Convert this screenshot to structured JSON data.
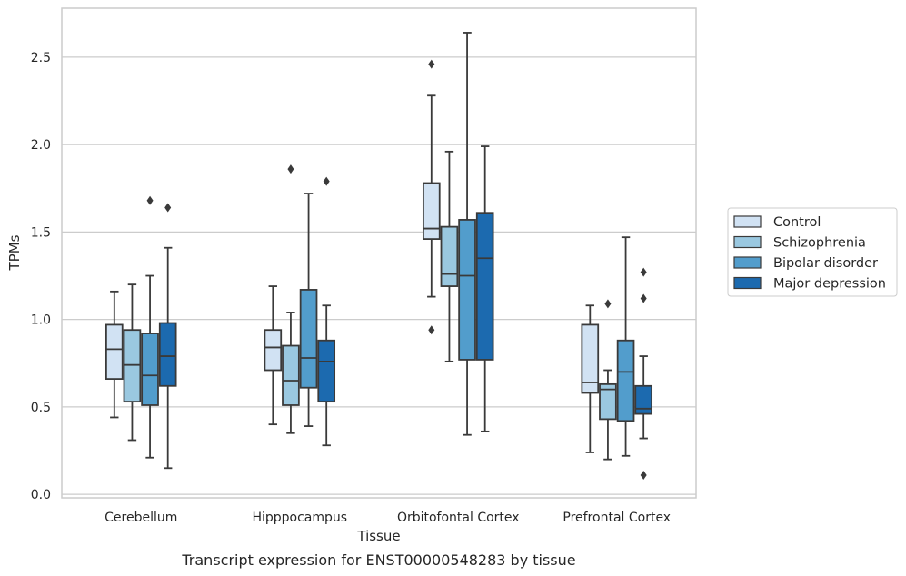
{
  "chart_data": {
    "type": "box",
    "caption": "Transcript expression for ENST00000548283 by tissue",
    "xlabel": "Tissue",
    "ylabel": "TPMs",
    "ylim": [
      -0.02,
      2.78
    ],
    "yticks": [
      0.0,
      0.5,
      1.0,
      1.5,
      2.0,
      2.5
    ],
    "ytick_labels": [
      "0.0",
      "0.5",
      "1.0",
      "1.5",
      "2.0",
      "2.5"
    ],
    "grid": "horizontal",
    "legend_position": "right",
    "categories": [
      "Cerebellum",
      "Hipppocampus",
      "Orbitofontal Cortex",
      "Prefrontal Cortex"
    ],
    "series": [
      {
        "name": "Control",
        "color": "#d1e2f3",
        "boxes": [
          {
            "whislo": 0.44,
            "q1": 0.66,
            "med": 0.83,
            "q3": 0.97,
            "whishi": 1.16,
            "fliers": []
          },
          {
            "whislo": 0.4,
            "q1": 0.71,
            "med": 0.84,
            "q3": 0.94,
            "whishi": 1.19,
            "fliers": []
          },
          {
            "whislo": 1.13,
            "q1": 1.46,
            "med": 1.52,
            "q3": 1.78,
            "whishi": 2.28,
            "fliers": [
              2.46,
              0.94
            ]
          },
          {
            "whislo": 0.24,
            "q1": 0.58,
            "med": 0.64,
            "q3": 0.97,
            "whishi": 1.08,
            "fliers": []
          }
        ]
      },
      {
        "name": "Schizophrenia",
        "color": "#9ac8e0",
        "boxes": [
          {
            "whislo": 0.31,
            "q1": 0.53,
            "med": 0.74,
            "q3": 0.94,
            "whishi": 1.2,
            "fliers": []
          },
          {
            "whislo": 0.35,
            "q1": 0.51,
            "med": 0.65,
            "q3": 0.85,
            "whishi": 1.04,
            "fliers": [
              1.86
            ]
          },
          {
            "whislo": 0.76,
            "q1": 1.19,
            "med": 1.26,
            "q3": 1.53,
            "whishi": 1.96,
            "fliers": []
          },
          {
            "whislo": 0.2,
            "q1": 0.43,
            "med": 0.6,
            "q3": 0.63,
            "whishi": 0.71,
            "fliers": [
              1.09
            ]
          }
        ]
      },
      {
        "name": "Bipolar disorder",
        "color": "#529dcc",
        "boxes": [
          {
            "whislo": 0.21,
            "q1": 0.51,
            "med": 0.68,
            "q3": 0.92,
            "whishi": 1.25,
            "fliers": [
              1.68
            ]
          },
          {
            "whislo": 0.39,
            "q1": 0.61,
            "med": 0.78,
            "q3": 1.17,
            "whishi": 1.72,
            "fliers": []
          },
          {
            "whislo": 0.34,
            "q1": 0.77,
            "med": 1.25,
            "q3": 1.57,
            "whishi": 2.64,
            "fliers": []
          },
          {
            "whislo": 0.22,
            "q1": 0.42,
            "med": 0.7,
            "q3": 0.88,
            "whishi": 1.47,
            "fliers": []
          }
        ]
      },
      {
        "name": "Major depression",
        "color": "#1c6aaf",
        "boxes": [
          {
            "whislo": 0.15,
            "q1": 0.62,
            "med": 0.79,
            "q3": 0.98,
            "whishi": 1.41,
            "fliers": [
              1.64
            ]
          },
          {
            "whislo": 0.28,
            "q1": 0.53,
            "med": 0.76,
            "q3": 0.88,
            "whishi": 1.08,
            "fliers": [
              1.79
            ]
          },
          {
            "whislo": 0.36,
            "q1": 0.77,
            "med": 1.35,
            "q3": 1.61,
            "whishi": 1.99,
            "fliers": []
          },
          {
            "whislo": 0.32,
            "q1": 0.46,
            "med": 0.49,
            "q3": 0.62,
            "whishi": 0.79,
            "fliers": [
              1.27,
              1.12,
              0.11
            ]
          }
        ]
      }
    ]
  }
}
